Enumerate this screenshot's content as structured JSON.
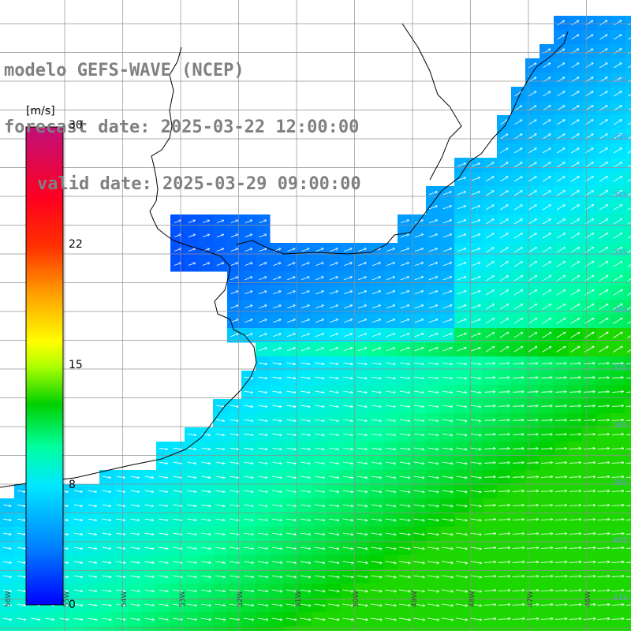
{
  "title": {
    "line1": "modelo GEFS-WAVE (NCEP)",
    "line2": "forecast date: 2025-03-22 12:00:00",
    "line3": "valid date: 2025-03-29 09:00:00"
  },
  "colorbar": {
    "unit": "[m/s]",
    "ticks": [
      "30",
      "22",
      "15",
      "8",
      "0"
    ],
    "tick_values": [
      30,
      22,
      15,
      8,
      0
    ],
    "min": 0,
    "max": 30,
    "colors": [
      "#0000ff",
      "#0080ff",
      "#00e0ff",
      "#00ffa0",
      "#00d000",
      "#70ff00",
      "#ffff00",
      "#ffb000",
      "#ff6000",
      "#ff0000",
      "#ff0060",
      "#c0107a"
    ]
  },
  "colors": {
    "land": "#ffffff",
    "coastline": "#000000",
    "grid": "#909090",
    "arrows": "#ffffff",
    "title": "#808080"
  },
  "map": {
    "lon_labels": [
      "56W",
      "55W",
      "54W",
      "53W",
      "52W",
      "51W",
      "50W",
      "49W",
      "48W",
      "47W",
      "46W"
    ],
    "lat_labels": [
      "32S",
      "33S",
      "34S",
      "35S",
      "36S",
      "37S",
      "38S",
      "39S",
      "40S",
      "41S"
    ]
  }
}
